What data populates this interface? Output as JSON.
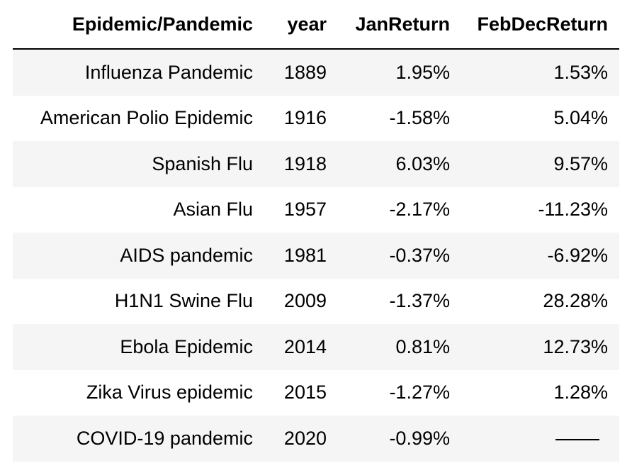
{
  "table": {
    "headers": [
      "Epidemic/Pandemic",
      "year",
      "JanReturn",
      "FebDecReturn"
    ],
    "rows": [
      [
        "Influenza Pandemic",
        "1889",
        "1.95%",
        "1.53%"
      ],
      [
        "American Polio Epidemic",
        "1916",
        "-1.58%",
        "5.04%"
      ],
      [
        "Spanish Flu",
        "1918",
        "6.03%",
        "9.57%"
      ],
      [
        "Asian Flu",
        "1957",
        "-2.17%",
        "-11.23%"
      ],
      [
        "AIDS pandemic",
        "1981",
        "-0.37%",
        "-6.92%"
      ],
      [
        "H1N1 Swine Flu",
        "2009",
        "-1.37%",
        "28.28%"
      ],
      [
        "Ebola Epidemic",
        "2014",
        "0.81%",
        "12.73%"
      ],
      [
        "Zika Virus epidemic",
        "2015",
        "-1.27%",
        "1.28%"
      ],
      [
        "COVID-19 pandemic",
        "2020",
        "-0.99%",
        ""
      ]
    ]
  }
}
